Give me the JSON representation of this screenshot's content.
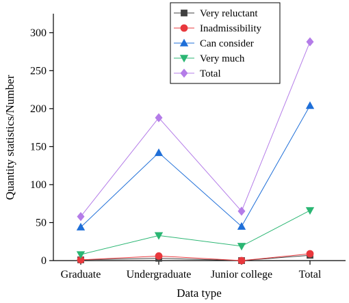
{
  "chart_data": {
    "type": "line",
    "categories": [
      "Graduate",
      "Undergraduate",
      "Junior college",
      "Total"
    ],
    "xlabel": "Data type",
    "ylabel": "Quantity statistics/Number",
    "ylim": [
      0,
      325
    ],
    "yticks": [
      0,
      50,
      100,
      150,
      200,
      250,
      300
    ],
    "grid": false,
    "legend_position": "top-right",
    "series": [
      {
        "name": "Very reluctant",
        "values": [
          1,
          3,
          0,
          7
        ],
        "color": "#404040",
        "marker": "square"
      },
      {
        "name": "Inadmissibility",
        "values": [
          1,
          6,
          0,
          9
        ],
        "color": "#e8383d",
        "marker": "circle"
      },
      {
        "name": "Can consider",
        "values": [
          44,
          142,
          45,
          204
        ],
        "color": "#1f6fd8",
        "marker": "triangle-up"
      },
      {
        "name": "Very much",
        "values": [
          8,
          33,
          19,
          66
        ],
        "color": "#2bb673",
        "marker": "triangle-down"
      },
      {
        "name": "Total",
        "values": [
          58,
          188,
          65,
          288
        ],
        "color": "#b47ce8",
        "marker": "diamond"
      }
    ]
  }
}
